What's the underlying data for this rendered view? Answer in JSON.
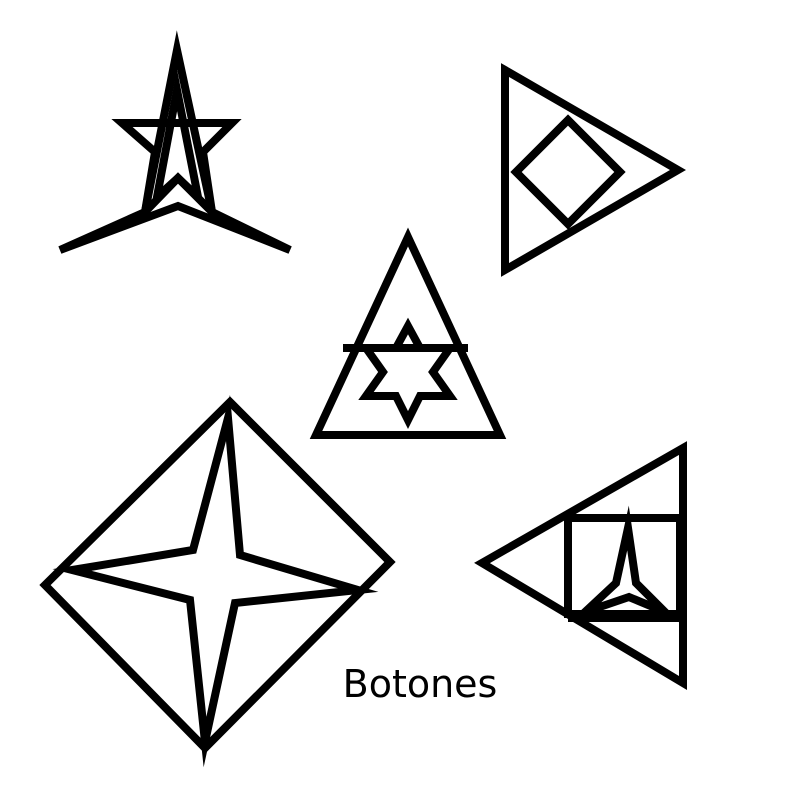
{
  "caption": "Botones",
  "colors": {
    "background": "#ffffff",
    "stroke": "#000000"
  },
  "buttons": [
    {
      "name": "star-on-arrowhead-button"
    },
    {
      "name": "diamond-in-triangle-button"
    },
    {
      "name": "hexagram-in-triangle-button"
    },
    {
      "name": "four-point-star-in-diamond-button"
    },
    {
      "name": "square-in-left-triangle-button"
    }
  ]
}
